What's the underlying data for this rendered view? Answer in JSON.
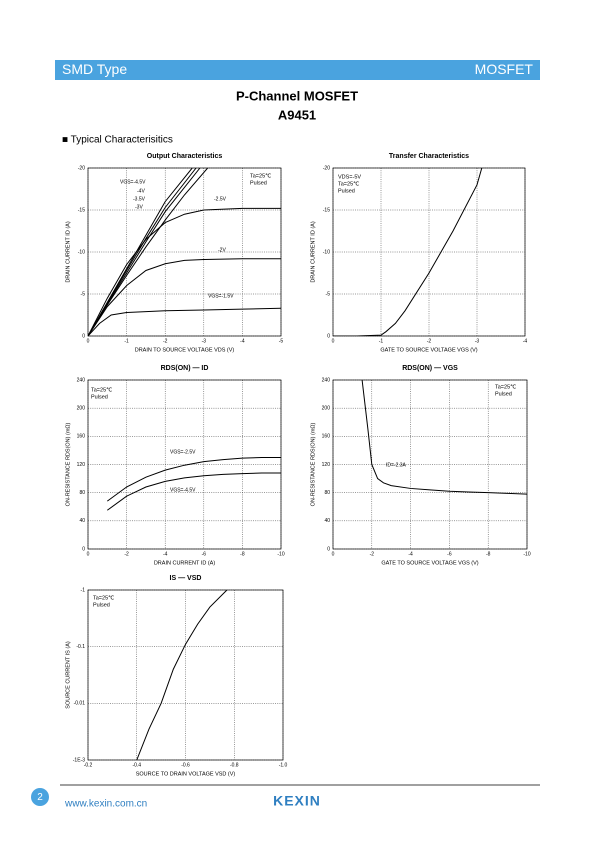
{
  "header": {
    "left": "SMD Type",
    "right": "MOSFET"
  },
  "title": "P-Channel MOSFET",
  "part": "A9451",
  "section": "■ Typical  Characterisitics",
  "footer": {
    "page": "2",
    "url": "www.kexin.com.cn",
    "logo": "KEXIN"
  },
  "chart_data": [
    {
      "type": "line",
      "title": "Output Characteristics",
      "x_label": "DRAIN TO SOURCE VOLTAGE  VDS  (V)",
      "y_label": "DRAIN CURRENT  ID  (A)",
      "xlim": [
        0,
        -5
      ],
      "ylim": [
        0,
        -20
      ],
      "xticks": [
        0,
        -1,
        -2,
        -3,
        -4,
        -5
      ],
      "yticks": [
        0,
        -5,
        -10,
        -15,
        -20
      ],
      "grid": true,
      "annotations": [
        "Ta=25℃",
        "Pulsed"
      ],
      "series": [
        {
          "name": "VGS=-4.5V",
          "color": "#000000",
          "x": [
            0,
            -0.5,
            -1,
            -1.5,
            -2,
            -2.7
          ],
          "values": [
            0,
            -4,
            -8,
            -12,
            -16,
            -20
          ]
        },
        {
          "name": "-4V",
          "color": "#000000",
          "x": [
            0,
            -0.5,
            -1,
            -1.5,
            -2,
            -2.8
          ],
          "values": [
            0,
            -3.9,
            -7.8,
            -11.6,
            -15.3,
            -20
          ]
        },
        {
          "name": "-3.5V",
          "color": "#000000",
          "x": [
            0,
            -0.5,
            -1,
            -1.5,
            -2,
            -2.9
          ],
          "values": [
            0,
            -3.8,
            -7.5,
            -11.2,
            -14.8,
            -20
          ]
        },
        {
          "name": "-3V",
          "color": "#000000",
          "x": [
            0,
            -0.5,
            -1,
            -1.5,
            -2,
            -2.5,
            -3.1
          ],
          "values": [
            0,
            -3.7,
            -7.2,
            -10.6,
            -13.8,
            -16.8,
            -20
          ]
        },
        {
          "name": "-2.5V",
          "color": "#000000",
          "x": [
            0,
            -0.5,
            -1,
            -1.5,
            -2,
            -2.5,
            -3,
            -4,
            -5
          ],
          "values": [
            0,
            -4.5,
            -8.5,
            -11.5,
            -13.5,
            -14.5,
            -15,
            -15.2,
            -15.2
          ]
        },
        {
          "name": "-2V",
          "color": "#000000",
          "x": [
            0,
            -0.5,
            -1,
            -1.5,
            -2,
            -2.5,
            -3,
            -4,
            -5
          ],
          "values": [
            0,
            -3.5,
            -6,
            -7.8,
            -8.6,
            -9,
            -9.1,
            -9.2,
            -9.2
          ]
        },
        {
          "name": "VGS=-1.5V",
          "color": "#000000",
          "x": [
            0,
            -0.3,
            -0.6,
            -1,
            -2,
            -3,
            -4,
            -5
          ],
          "values": [
            0,
            -1.5,
            -2.5,
            -2.8,
            -3,
            -3.1,
            -3.2,
            -3.3
          ]
        }
      ]
    },
    {
      "type": "line",
      "title": "Transfer Characteristics",
      "x_label": "GATE TO SOURCE VOLTAGE  VGS  (V)",
      "y_label": "DRAIN CURRENT  ID  (A)",
      "xlim": [
        0,
        -4
      ],
      "ylim": [
        0,
        -20
      ],
      "xticks": [
        0,
        -1,
        -2,
        -3,
        -4
      ],
      "yticks": [
        0,
        -5,
        -10,
        -15,
        -20
      ],
      "grid": true,
      "annotations": [
        "VDS=-5V",
        "Ta=25℃",
        "Pulsed"
      ],
      "series": [
        {
          "color": "#000000",
          "x": [
            0,
            -0.5,
            -1,
            -1.1,
            -1.3,
            -1.5,
            -2,
            -2.5,
            -3,
            -3.1
          ],
          "values": [
            0,
            0,
            -0.1,
            -0.5,
            -1.5,
            -3,
            -7.5,
            -12.5,
            -18,
            -20
          ]
        }
      ]
    },
    {
      "type": "line",
      "title": "RDS(ON) — ID",
      "x_label": "DRAIN CURRENT  ID  (A)",
      "y_label": "ON-RESISTANCE  RDS(ON)  (mΩ)",
      "xlim": [
        0,
        -10
      ],
      "ylim": [
        0,
        240
      ],
      "xticks": [
        0,
        -2,
        -4,
        -6,
        -8,
        -10
      ],
      "yticks": [
        0,
        40,
        80,
        120,
        160,
        200,
        240
      ],
      "grid": true,
      "annotations": [
        "Ta=25℃",
        "Pulsed"
      ],
      "series": [
        {
          "name": "VGS=-2.5V",
          "color": "#000000",
          "x": [
            -1,
            -2,
            -3,
            -4,
            -5,
            -6,
            -7,
            -8,
            -9,
            -10
          ],
          "values": [
            68,
            88,
            102,
            112,
            119,
            124,
            127,
            129,
            130,
            130
          ]
        },
        {
          "name": "VGS=-4.5V",
          "color": "#000000",
          "x": [
            -1,
            -2,
            -3,
            -4,
            -5,
            -6,
            -7,
            -8,
            -9,
            -10
          ],
          "values": [
            55,
            75,
            88,
            96,
            101,
            104,
            106,
            107,
            108,
            108
          ]
        }
      ]
    },
    {
      "type": "line",
      "title": "RDS(ON) — VGS",
      "x_label": "GATE TO SOURCE VOLTAGE  VGS  (V)",
      "y_label": "ON-RESISTANCE  RDS(ON)  (mΩ)",
      "xlim": [
        0,
        -10
      ],
      "ylim": [
        0,
        240
      ],
      "xticks": [
        0,
        -2,
        -4,
        -6,
        -8,
        -10
      ],
      "yticks": [
        0,
        40,
        80,
        120,
        160,
        200,
        240
      ],
      "grid": true,
      "annotations": [
        "Ta=25℃",
        "Pulsed"
      ],
      "series": [
        {
          "name": "ID=-2.3A",
          "color": "#000000",
          "x": [
            -1.5,
            -1.8,
            -2,
            -2.3,
            -2.6,
            -3,
            -4,
            -5,
            -6,
            -7,
            -8,
            -9,
            -10
          ],
          "values": [
            240,
            170,
            120,
            100,
            94,
            90,
            86,
            84,
            82,
            81,
            80,
            79,
            78
          ]
        }
      ]
    },
    {
      "type": "line",
      "title": "IS — VSD",
      "x_label": "SOURCE TO DRAIN VOLTAGE  VSD  (V)",
      "y_label": "SOURCE CURRENT  IS  (A)",
      "xlim": [
        -0.2,
        -1
      ],
      "ylim": [
        -0.001,
        -1
      ],
      "log": true,
      "xticks": [
        -0.2,
        -0.4,
        -0.6,
        -0.8,
        {
          "value": -1,
          "label": "-1.0"
        }
      ],
      "yticks": [
        {
          "value": -0.001,
          "label": "-1E-3"
        },
        -0.01,
        -0.1,
        -1
      ],
      "grid": true,
      "annotations": [
        "Ta=25℃",
        "Pulsed"
      ],
      "series": [
        {
          "color": "#000000",
          "x": [
            -0.4,
            -0.45,
            -0.5,
            -0.55,
            -0.6,
            -0.65,
            -0.7,
            -0.77
          ],
          "values": [
            -0.001,
            -0.0035,
            -0.01,
            -0.04,
            -0.11,
            -0.25,
            -0.5,
            -1
          ]
        }
      ]
    }
  ]
}
